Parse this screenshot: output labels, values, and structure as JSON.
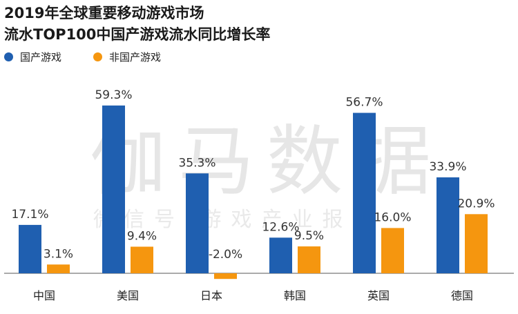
{
  "chart_data": {
    "type": "bar",
    "title_line1": "2019年全球重要移动游戏市场",
    "title_line2": "流水TOP100中国产游戏流水同比增长率",
    "categories": [
      "中国",
      "美国",
      "日本",
      "韩国",
      "英国",
      "德国"
    ],
    "series": [
      {
        "name": "国产游戏",
        "color": "#1f5fb0",
        "values": [
          17.1,
          59.3,
          35.3,
          12.6,
          56.7,
          33.9
        ],
        "labels": [
          "17.1%",
          "59.3%",
          "35.3%",
          "12.6%",
          "56.7%",
          "33.9%"
        ]
      },
      {
        "name": "非国产游戏",
        "color": "#f5960f",
        "values": [
          3.1,
          9.4,
          -2.0,
          9.5,
          16.0,
          20.9
        ],
        "labels": [
          "3.1%",
          "9.4%",
          "-2.0%",
          "9.5%",
          "16.0%",
          "20.9%"
        ]
      }
    ],
    "legend_position": "top-left",
    "grid": false
  },
  "watermark": {
    "main": "伽马数据",
    "sub": "微信号 游戏产业报告"
  }
}
